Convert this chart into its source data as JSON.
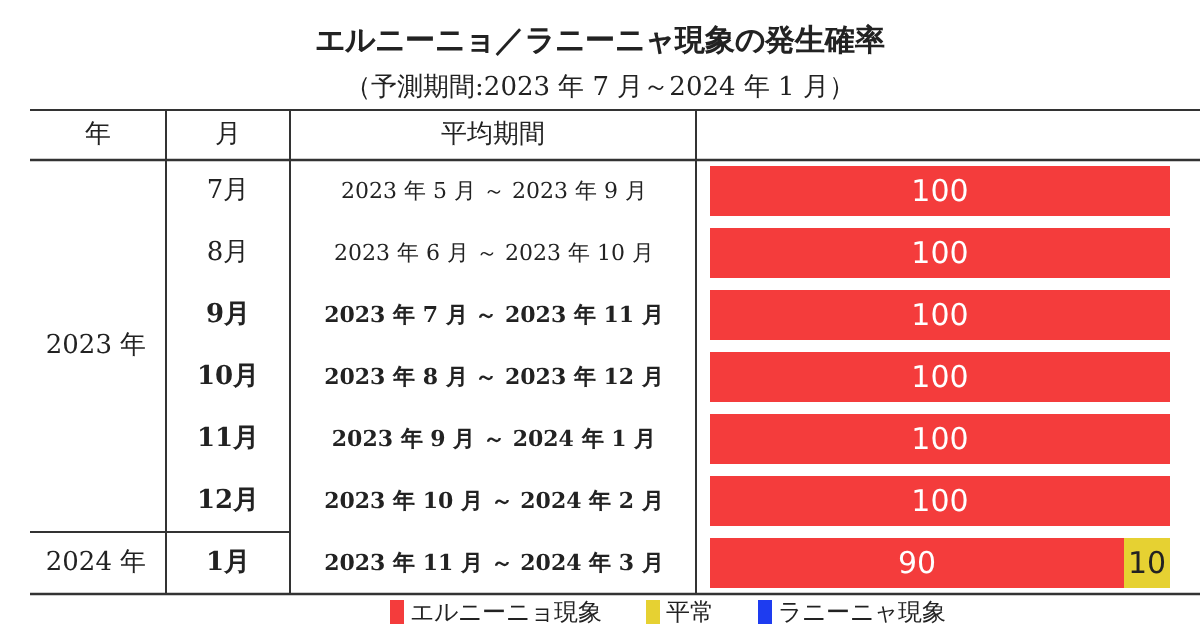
{
  "chart_data": {
    "type": "bar",
    "orientation": "horizontal",
    "stacked": true,
    "title": "エルニーニョ／ラニーニャ現象の発生確率",
    "subtitle": "（予測期間:2023 年 7 月～2024 年 1 月）",
    "categories": [
      "7月",
      "8月",
      "9月",
      "10月",
      "11月",
      "12月",
      "1月"
    ],
    "series": [
      {
        "name": "エルニーニョ現象",
        "color": "#f43c3c",
        "values": [
          100,
          100,
          100,
          100,
          100,
          100,
          90
        ],
        "value_labels": [
          "100",
          "100",
          "100",
          "100",
          "100",
          "100",
          "90"
        ]
      },
      {
        "name": "平常",
        "color": "#e6d132",
        "values": [
          0,
          0,
          0,
          0,
          0,
          0,
          10
        ],
        "value_labels": [
          null,
          null,
          null,
          null,
          null,
          null,
          "10"
        ]
      },
      {
        "name": "ラニーニャ現象",
        "color": "#1e3cf0",
        "values": [
          0,
          0,
          0,
          0,
          0,
          0,
          0
        ],
        "value_labels": [
          null,
          null,
          null,
          null,
          null,
          null,
          null
        ]
      }
    ],
    "annotations": [
      "年",
      "月",
      "平均期間",
      "2023 年",
      "2024 年",
      "2023 年 5 月 ～ 2023 年 9 月",
      "2023 年 6 月 ～ 2023 年 10 月",
      "2023 年 7 月 ～ 2023 年 11 月",
      "2023 年 8 月 ～ 2023 年 12 月",
      "2023 年 9 月 ～ 2024 年 1 月",
      "2023 年 10 月 ～ 2024 年 2 月",
      "2023 年 11 月 ～ 2024 年 3 月"
    ],
    "legend": "bottom"
  }
}
